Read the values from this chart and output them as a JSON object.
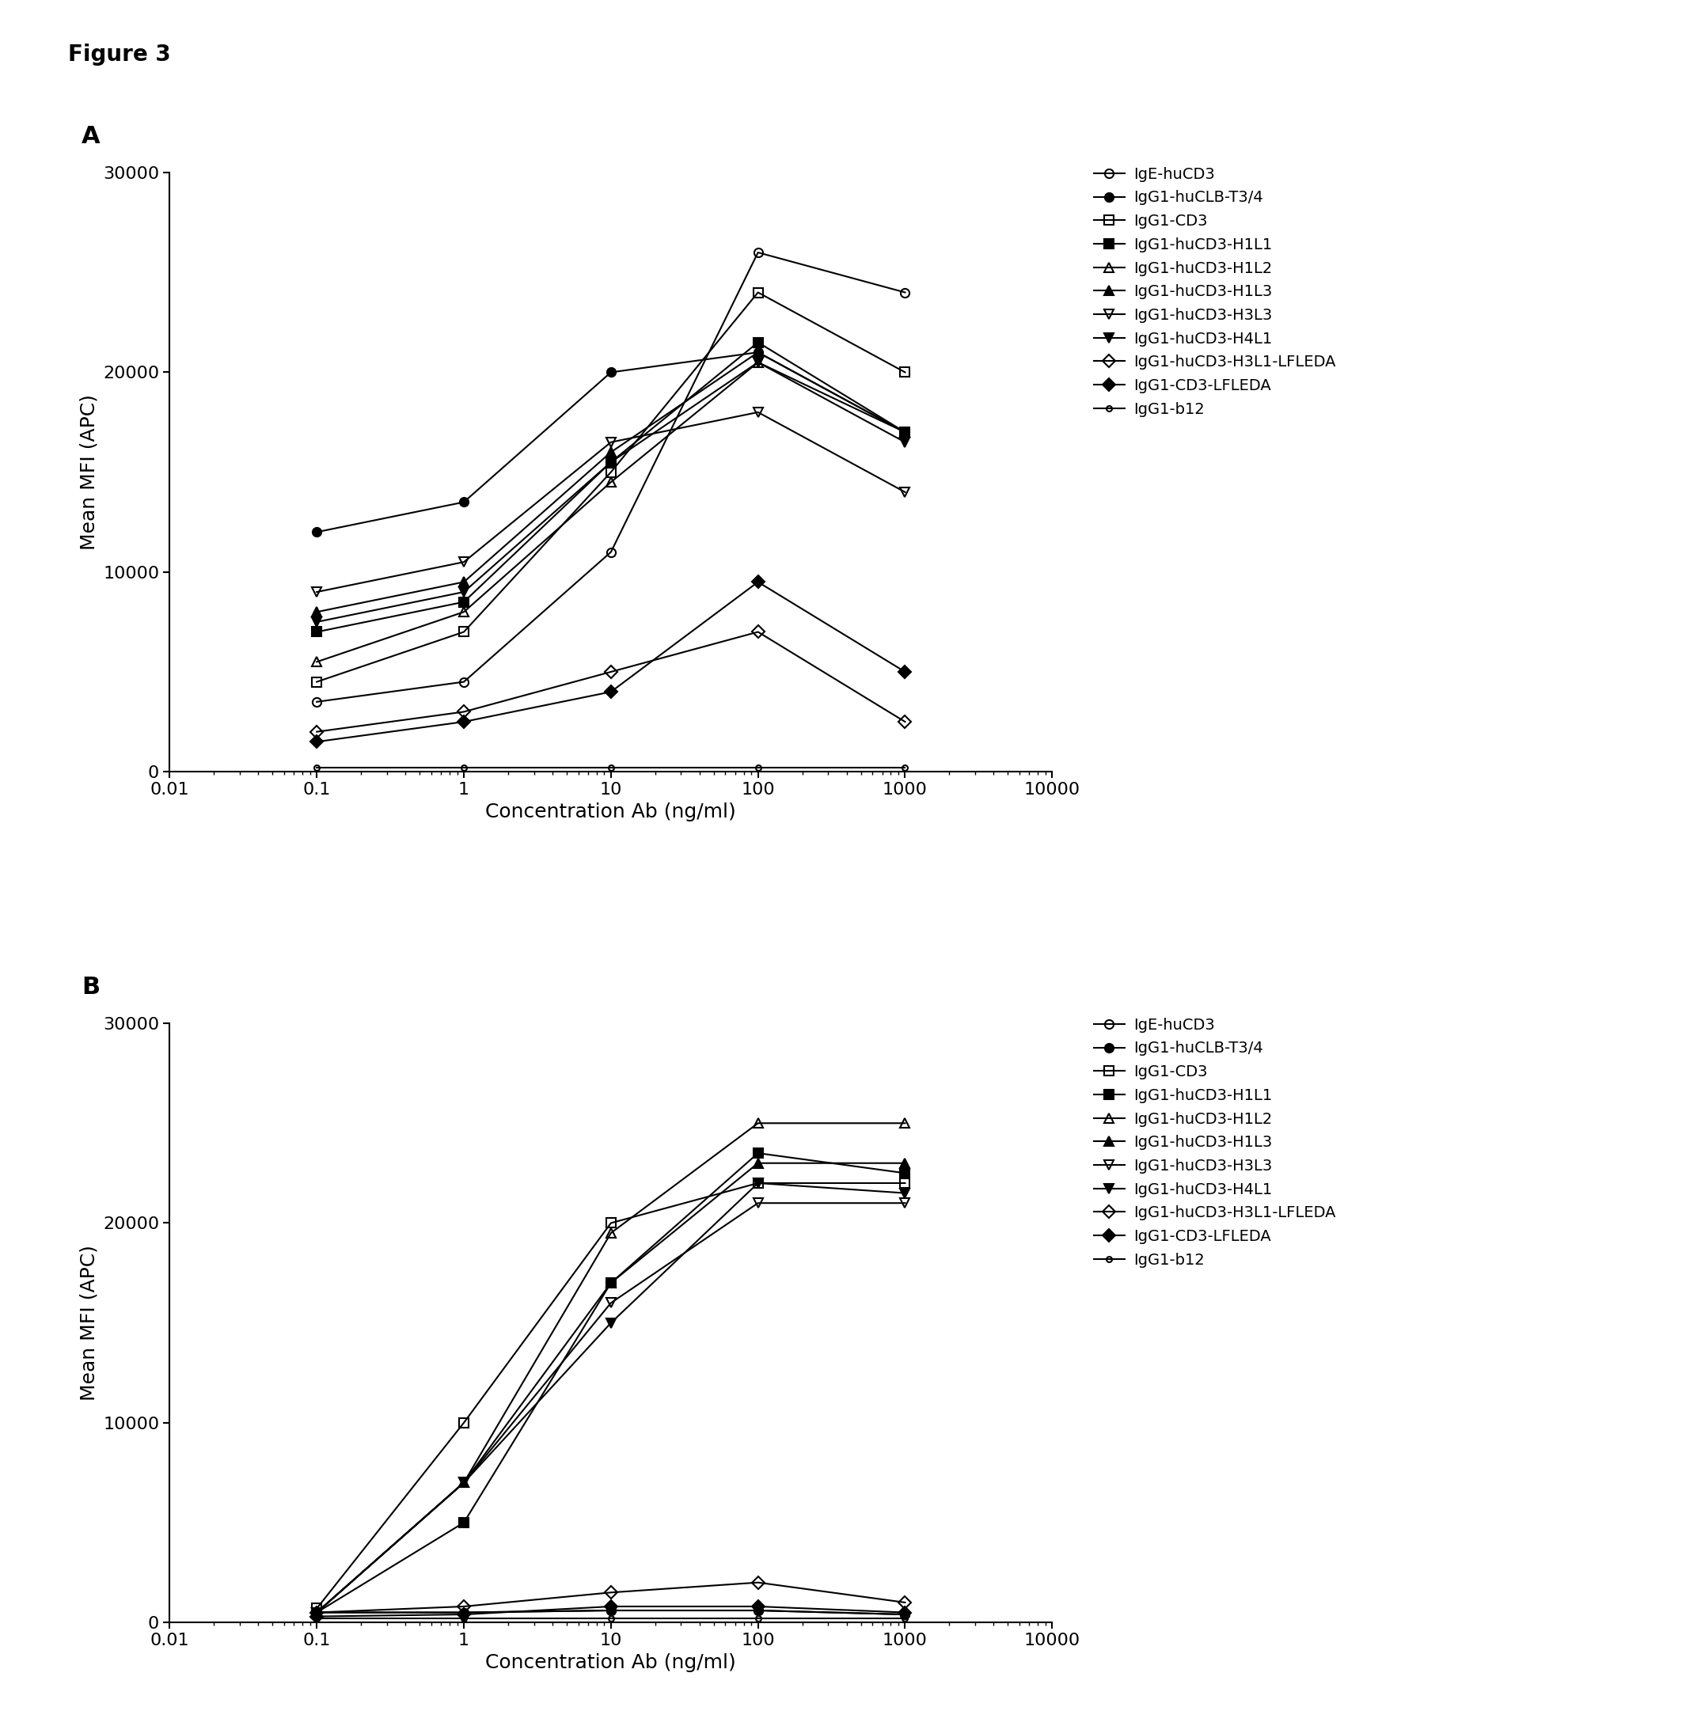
{
  "panel_A": {
    "series": [
      {
        "label": "IgE-huCD3",
        "marker": "o",
        "fillstyle": "none",
        "x": [
          0.1,
          1,
          10,
          100,
          1000
        ],
        "y": [
          3500,
          4500,
          11000,
          26000,
          24000
        ]
      },
      {
        "label": "IgG1-huCLB-T3/4",
        "marker": "o",
        "fillstyle": "full",
        "x": [
          0.1,
          1,
          10,
          100,
          1000
        ],
        "y": [
          12000,
          13500,
          20000,
          21000,
          17000
        ]
      },
      {
        "label": "IgG1-CD3",
        "marker": "s",
        "fillstyle": "none",
        "x": [
          0.1,
          1,
          10,
          100,
          1000
        ],
        "y": [
          4500,
          7000,
          15000,
          24000,
          20000
        ]
      },
      {
        "label": "IgG1-huCD3-H1L1",
        "marker": "s",
        "fillstyle": "full",
        "x": [
          0.1,
          1,
          10,
          100,
          1000
        ],
        "y": [
          7000,
          8500,
          15500,
          21500,
          17000
        ]
      },
      {
        "label": "IgG1-huCD3-H1L2",
        "marker": "^",
        "fillstyle": "none",
        "x": [
          0.1,
          1,
          10,
          100,
          1000
        ],
        "y": [
          5500,
          8000,
          14500,
          20500,
          17000
        ]
      },
      {
        "label": "IgG1-huCD3-H1L3",
        "marker": "^",
        "fillstyle": "full",
        "x": [
          0.1,
          1,
          10,
          100,
          1000
        ],
        "y": [
          8000,
          9500,
          16000,
          21000,
          17000
        ]
      },
      {
        "label": "IgG1-huCD3-H3L3",
        "marker": "v",
        "fillstyle": "none",
        "x": [
          0.1,
          1,
          10,
          100,
          1000
        ],
        "y": [
          9000,
          10500,
          16500,
          18000,
          14000
        ]
      },
      {
        "label": "IgG1-huCD3-H4L1",
        "marker": "v",
        "fillstyle": "full",
        "x": [
          0.1,
          1,
          10,
          100,
          1000
        ],
        "y": [
          7500,
          9000,
          15500,
          20500,
          16500
        ]
      },
      {
        "label": "IgG1-huCD3-H3L1-LFLEDA",
        "marker": "D",
        "fillstyle": "none",
        "x": [
          0.1,
          1,
          10,
          100,
          1000
        ],
        "y": [
          2000,
          3000,
          5000,
          7000,
          2500
        ]
      },
      {
        "label": "IgG1-CD3-LFLEDA",
        "marker": "D",
        "fillstyle": "full",
        "x": [
          0.1,
          1,
          10,
          100,
          1000
        ],
        "y": [
          1500,
          2500,
          4000,
          9500,
          5000
        ]
      },
      {
        "label": "IgG1-b12",
        "marker": "o",
        "fillstyle": "none",
        "small": true,
        "x": [
          0.1,
          1,
          10,
          100,
          1000
        ],
        "y": [
          200,
          200,
          200,
          200,
          200
        ]
      }
    ],
    "ylabel": "Mean MFI (APC)",
    "xlabel": "Concentration Ab (ng/ml)",
    "ylim": [
      0,
      30000
    ],
    "yticks": [
      0,
      10000,
      20000,
      30000
    ],
    "panel_label": "A"
  },
  "panel_B": {
    "series": [
      {
        "label": "IgE-huCD3",
        "marker": "o",
        "fillstyle": "none",
        "x": [
          0.1,
          1,
          10,
          100,
          1000
        ],
        "y": [
          500,
          500,
          600,
          600,
          400
        ]
      },
      {
        "label": "IgG1-huCLB-T3/4",
        "marker": "o",
        "fillstyle": "full",
        "x": [
          0.1,
          1,
          10,
          100,
          1000
        ],
        "y": [
          500,
          500,
          600,
          600,
          400
        ]
      },
      {
        "label": "IgG1-CD3",
        "marker": "s",
        "fillstyle": "none",
        "x": [
          0.1,
          1,
          10,
          100,
          1000
        ],
        "y": [
          700,
          10000,
          20000,
          22000,
          22000
        ]
      },
      {
        "label": "IgG1-huCD3-H1L1",
        "marker": "s",
        "fillstyle": "full",
        "x": [
          0.1,
          1,
          10,
          100,
          1000
        ],
        "y": [
          500,
          5000,
          17000,
          23500,
          22500
        ]
      },
      {
        "label": "IgG1-huCD3-H1L2",
        "marker": "^",
        "fillstyle": "none",
        "x": [
          0.1,
          1,
          10,
          100,
          1000
        ],
        "y": [
          500,
          7000,
          19500,
          25000,
          25000
        ]
      },
      {
        "label": "IgG1-huCD3-H1L3",
        "marker": "^",
        "fillstyle": "full",
        "x": [
          0.1,
          1,
          10,
          100,
          1000
        ],
        "y": [
          500,
          7000,
          17000,
          23000,
          23000
        ]
      },
      {
        "label": "IgG1-huCD3-H3L3",
        "marker": "v",
        "fillstyle": "none",
        "x": [
          0.1,
          1,
          10,
          100,
          1000
        ],
        "y": [
          500,
          7000,
          16000,
          21000,
          21000
        ]
      },
      {
        "label": "IgG1-huCD3-H4L1",
        "marker": "v",
        "fillstyle": "full",
        "x": [
          0.1,
          1,
          10,
          100,
          1000
        ],
        "y": [
          500,
          7000,
          15000,
          22000,
          21500
        ]
      },
      {
        "label": "IgG1-huCD3-H3L1-LFLEDA",
        "marker": "D",
        "fillstyle": "none",
        "x": [
          0.1,
          1,
          10,
          100,
          1000
        ],
        "y": [
          500,
          800,
          1500,
          2000,
          1000
        ]
      },
      {
        "label": "IgG1-CD3-LFLEDA",
        "marker": "D",
        "fillstyle": "full",
        "x": [
          0.1,
          1,
          10,
          100,
          1000
        ],
        "y": [
          300,
          400,
          800,
          800,
          500
        ]
      },
      {
        "label": "IgG1-b12",
        "marker": "o",
        "fillstyle": "none",
        "small": true,
        "x": [
          0.1,
          1,
          10,
          100,
          1000
        ],
        "y": [
          200,
          200,
          200,
          200,
          200
        ]
      }
    ],
    "ylabel": "Mean MFI (APC)",
    "xlabel": "Concentration Ab (ng/ml)",
    "ylim": [
      0,
      30000
    ],
    "yticks": [
      0,
      10000,
      20000,
      30000
    ],
    "panel_label": "B"
  },
  "figure_label": "Figure 3",
  "linewidth": 1.5,
  "markersize": 8,
  "markersize_small": 5,
  "markeredgewidth": 1.5,
  "tick_labelsize": 16,
  "axis_labelsize": 18,
  "legend_fontsize": 14,
  "panel_label_fontsize": 22,
  "figure_label_fontsize": 20,
  "xlim": [
    0.01,
    10000
  ],
  "xticks": [
    0.01,
    0.1,
    1,
    10,
    100,
    1000,
    10000
  ]
}
